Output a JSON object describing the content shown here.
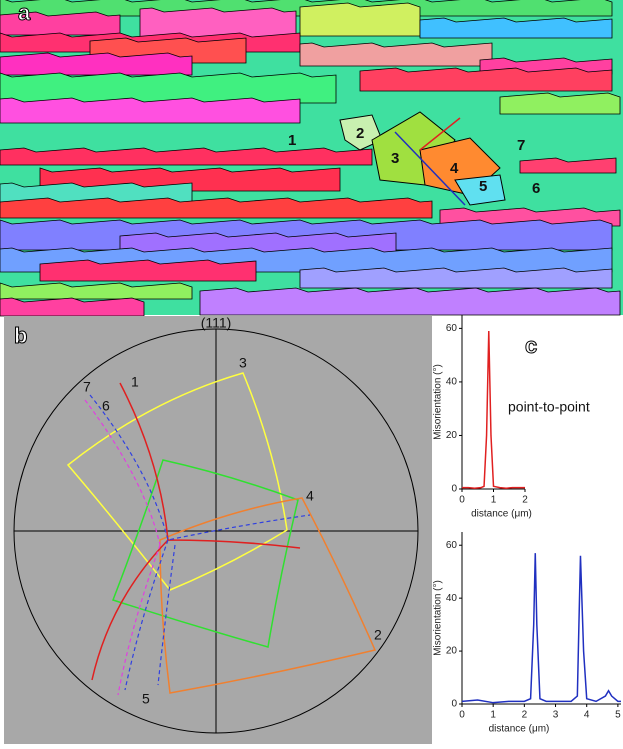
{
  "figure": {
    "panel_a": {
      "label": "a",
      "grain_labels": [
        "1",
        "2",
        "3",
        "4",
        "5",
        "6",
        "7"
      ]
    },
    "panel_b": {
      "label": "b",
      "pole": "(111)",
      "grain_labels": [
        "1",
        "2",
        "3",
        "4",
        "5",
        "6",
        "7"
      ]
    },
    "panel_c": {
      "label": "c"
    }
  },
  "chart_data": [
    {
      "type": "line",
      "annotation": "point-to-point",
      "x_label": "distance (μm)",
      "y_label": "Misorientation (°)",
      "x": [
        0,
        0.2,
        0.4,
        0.6,
        0.7,
        0.78,
        0.85,
        0.92,
        1.0,
        1.2,
        1.4,
        1.6,
        1.8,
        2.0
      ],
      "series": [
        {
          "color": "#e02020",
          "values": [
            0.5,
            0.5,
            0.3,
            0.5,
            1,
            20,
            59,
            20,
            1,
            0.5,
            0.3,
            0.5,
            0.5,
            0.5
          ]
        }
      ],
      "xlim": [
        0,
        2
      ],
      "ylim": [
        0,
        65
      ],
      "xticks": [
        0,
        1,
        2
      ],
      "yticks": [
        0,
        20,
        40,
        60
      ]
    },
    {
      "type": "line",
      "x_label": "distance (μm)",
      "y_label": "Misorientation (°)",
      "x": [
        0,
        0.5,
        1,
        1.5,
        2,
        2.2,
        2.3,
        2.35,
        2.4,
        2.5,
        2.7,
        3,
        3.5,
        3.7,
        3.75,
        3.8,
        3.9,
        4,
        4.3,
        4.6,
        4.7,
        4.8,
        5,
        5.1
      ],
      "series": [
        {
          "color": "#2030c0",
          "values": [
            1,
            1.5,
            0.5,
            1,
            1,
            2,
            30,
            57,
            30,
            2,
            1,
            1,
            1,
            3,
            30,
            56,
            20,
            2,
            1,
            3,
            5,
            3,
            1,
            1
          ]
        }
      ],
      "xlim": [
        0,
        5.1
      ],
      "ylim": [
        0,
        65
      ],
      "xticks": [
        0,
        1,
        2,
        3,
        4,
        5
      ],
      "yticks": [
        0,
        20,
        40,
        60
      ]
    }
  ]
}
